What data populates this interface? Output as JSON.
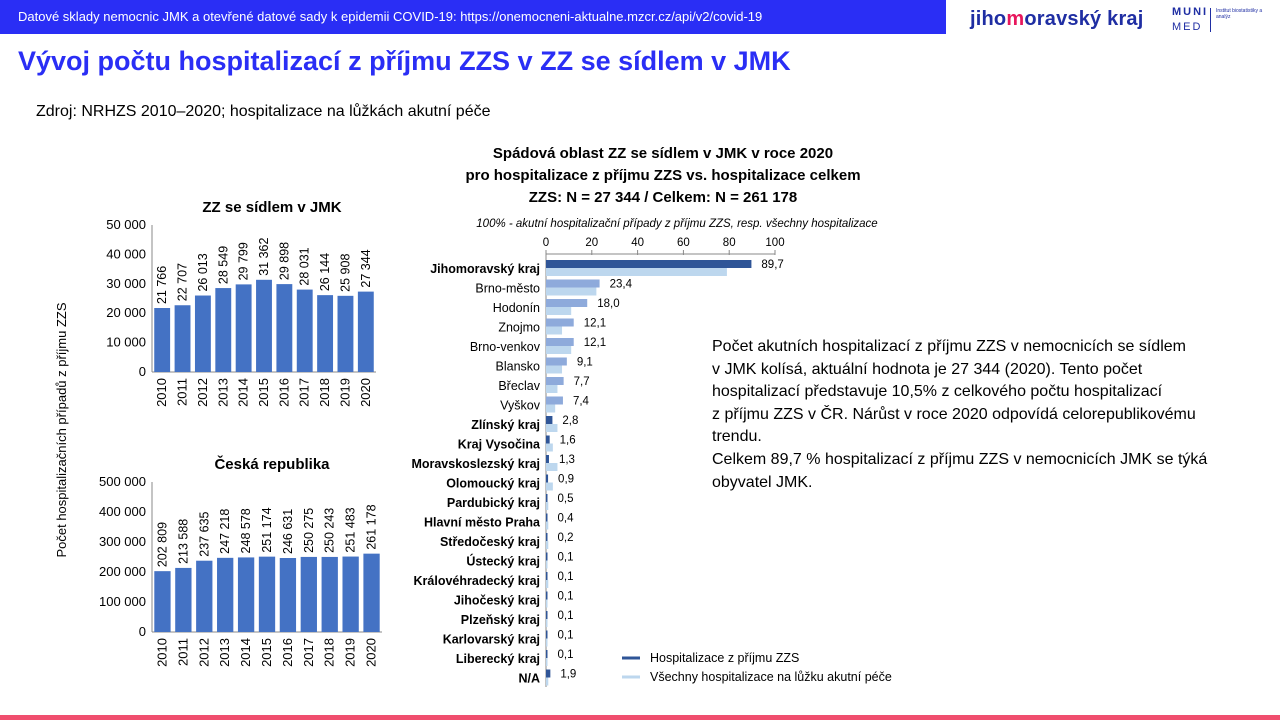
{
  "header": {
    "banner_text": "Datové sklady nemocnic JMK a otevřené datové sady k epidemii COVID-19: https://onemocneni-aktualne.mzcr.cz/api/v2/covid-19",
    "logo_jmk_prefix": "jiho",
    "logo_jmk_highlight": "m",
    "logo_jmk_suffix": "oravský kraj",
    "logo_muni_line1": "MUNI",
    "logo_muni_line2": "MED",
    "logo_muni_institute": "Institut biostatistiky a analýz"
  },
  "title": "Vývoj počtu hospitalizací z příjmu ZZS v ZZ se sídlem v JMK",
  "source": "Zdroj: NRHZS 2010–2020; hospitalizace na lůžkách akutní péče",
  "shared_ylabel": "Počet hospitalizačních případů z příjmu ZZS",
  "description": [
    "Počet akutních hospitalizací z příjmu ZZS v nemocnicích se sídlem",
    "v JMK kolísá, aktuální hodnota je 27 344 (2020). Tento počet",
    "hospitalizací představuje 10,5% z celkového počtu hospitalizací",
    "z příjmu ZZS v ČR. Nárůst v roce 2020 odpovídá celorepublikovému",
    "trendu.",
    "Celkem 89,7 % hospitalizací z příjmu ZZS v nemocnicích JMK se týká",
    "obyvatel JMK."
  ],
  "colors": {
    "banner": "#2a2ef5",
    "title": "#2a2ef5",
    "bar_primary": "#4472c4",
    "bar_dark": "#2f5597",
    "bar_light": "#bdd7ee",
    "accent_line": "#f04e6e"
  },
  "chart_data": [
    {
      "type": "bar",
      "title": "ZZ se sídlem v JMK",
      "categories": [
        "2010",
        "2011",
        "2012",
        "2013",
        "2014",
        "2015",
        "2016",
        "2017",
        "2018",
        "2019",
        "2020"
      ],
      "values": [
        21766,
        22707,
        26013,
        28549,
        29799,
        31362,
        29898,
        28031,
        26144,
        25908,
        27344
      ],
      "value_labels": [
        "21 766",
        "22 707",
        "26 013",
        "28 549",
        "29 799",
        "31 362",
        "29 898",
        "28 031",
        "26 144",
        "25 908",
        "27 344"
      ],
      "ylim": [
        0,
        50000
      ],
      "yticks": [
        0,
        10000,
        20000,
        30000,
        40000,
        50000
      ],
      "ytick_labels": [
        "0",
        "10 000",
        "20 000",
        "30 000",
        "40 000",
        "50 000"
      ],
      "grid": false
    },
    {
      "type": "bar",
      "title": "Česká republika",
      "categories": [
        "2010",
        "2011",
        "2012",
        "2013",
        "2014",
        "2015",
        "2016",
        "2017",
        "2018",
        "2019",
        "2020"
      ],
      "values": [
        202809,
        213588,
        237635,
        247218,
        248578,
        251174,
        246631,
        250275,
        250243,
        251483,
        261178
      ],
      "value_labels": [
        "202 809",
        "213 588",
        "237 635",
        "247 218",
        "248 578",
        "251 174",
        "246 631",
        "250 275",
        "250 243",
        "251 483",
        "261 178"
      ],
      "ylim": [
        0,
        500000
      ],
      "yticks": [
        0,
        100000,
        200000,
        300000,
        400000,
        500000
      ],
      "ytick_labels": [
        "0",
        "100 000",
        "200 000",
        "300 000",
        "400 000",
        "500 000"
      ],
      "grid": false
    },
    {
      "type": "bar",
      "orientation": "horizontal",
      "title": [
        "Spádová oblast ZZ se sídlem v JMK v roce 2020",
        "pro hospitalizace z příjmu ZZS vs. hospitalizace celkem",
        "ZZS: N = 27 344 / Celkem: N = 261 178"
      ],
      "subtitle": "100% - akutní hospitalizační případy z příjmu ZZS, resp. všechny hospitalizace",
      "xlim": [
        0,
        100
      ],
      "xticks": [
        0,
        20,
        40,
        60,
        80,
        100
      ],
      "categories": [
        "Jihomoravský kraj",
        "Brno-město",
        "Hodonín",
        "Znojmo",
        "Brno-venkov",
        "Blansko",
        "Břeclav",
        "Vyškov",
        "Zlínský kraj",
        "Kraj Vysočina",
        "Moravskoslezský kraj",
        "Olomoucký kraj",
        "Pardubický kraj",
        "Hlavní město Praha",
        "Středočeský kraj",
        "Ústecký kraj",
        "Královéhradecký kraj",
        "Jihočeský kraj",
        "Plzeňský kraj",
        "Karlovarský kraj",
        "Liberecký kraj",
        "N/A"
      ],
      "category_bold": [
        true,
        false,
        false,
        false,
        false,
        false,
        false,
        false,
        true,
        true,
        true,
        true,
        true,
        true,
        true,
        true,
        true,
        true,
        true,
        true,
        true,
        true
      ],
      "series": [
        {
          "name": "Hospitalizace z příjmu ZZS",
          "color": "#2f5597",
          "subregion_color": "#8eaadb",
          "values": [
            89.7,
            23.4,
            18.0,
            12.1,
            12.1,
            9.1,
            7.7,
            7.4,
            2.8,
            1.6,
            1.3,
            0.9,
            0.5,
            0.4,
            0.2,
            0.1,
            0.1,
            0.1,
            0.1,
            0.1,
            0.1,
            1.9
          ],
          "value_labels": [
            "89,7",
            "23,4",
            "18,0",
            "12,1",
            "12,1",
            "9,1",
            "7,7",
            "7,4",
            "2,8",
            "1,6",
            "1,3",
            "0,9",
            "0,5",
            "0,4",
            "0,2",
            "0,1",
            "0,1",
            "0,1",
            "0,1",
            "0,1",
            "0,1",
            "1,9"
          ]
        },
        {
          "name": "Všechny hospitalizace na lůžku akutní péče",
          "color": "#bdd7ee",
          "values": [
            79,
            22,
            11,
            7,
            11,
            7,
            5,
            4,
            5,
            3,
            5,
            3,
            1,
            1,
            1,
            0.5,
            1,
            0.5,
            0.5,
            0.3,
            0.5,
            1
          ]
        }
      ],
      "legend": "bottom-right"
    }
  ]
}
